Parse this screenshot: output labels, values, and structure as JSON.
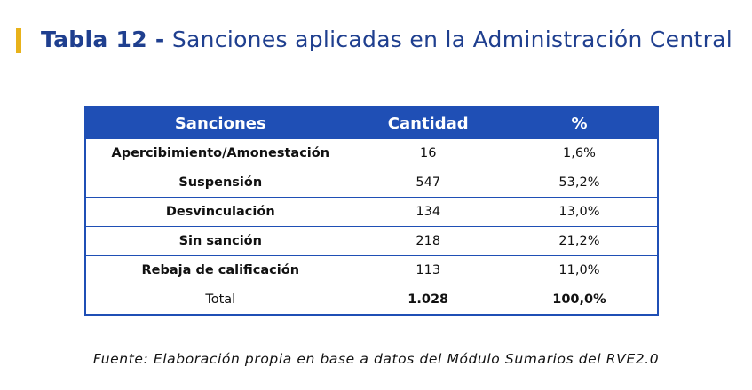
{
  "heading": {
    "bold": "Tabla 12 -",
    "rest": "Sanciones aplicadas en la Administración Central"
  },
  "table": {
    "headers": [
      "Sanciones",
      "Cantidad",
      "%"
    ],
    "rows": [
      {
        "label": "Apercibimiento/Amonestación",
        "cantidad": "16",
        "pct": "1,6%"
      },
      {
        "label": "Suspensión",
        "cantidad": "547",
        "pct": "53,2%"
      },
      {
        "label": "Desvinculación",
        "cantidad": "134",
        "pct": "13,0%"
      },
      {
        "label": "Sin sanción",
        "cantidad": "218",
        "pct": "21,2%"
      },
      {
        "label": "Rebaja de calificación",
        "cantidad": "113",
        "pct": "11,0%"
      }
    ],
    "total": {
      "label": "Total",
      "cantidad": "1.028",
      "pct": "100,0%"
    }
  },
  "source": "Fuente: Elaboración propia en base a datos del Módulo Sumarios del RVE2.0",
  "colors": {
    "accent_bar": "#e8b21a",
    "title": "#1f3f8f",
    "table_header": "#1f4fb5"
  }
}
